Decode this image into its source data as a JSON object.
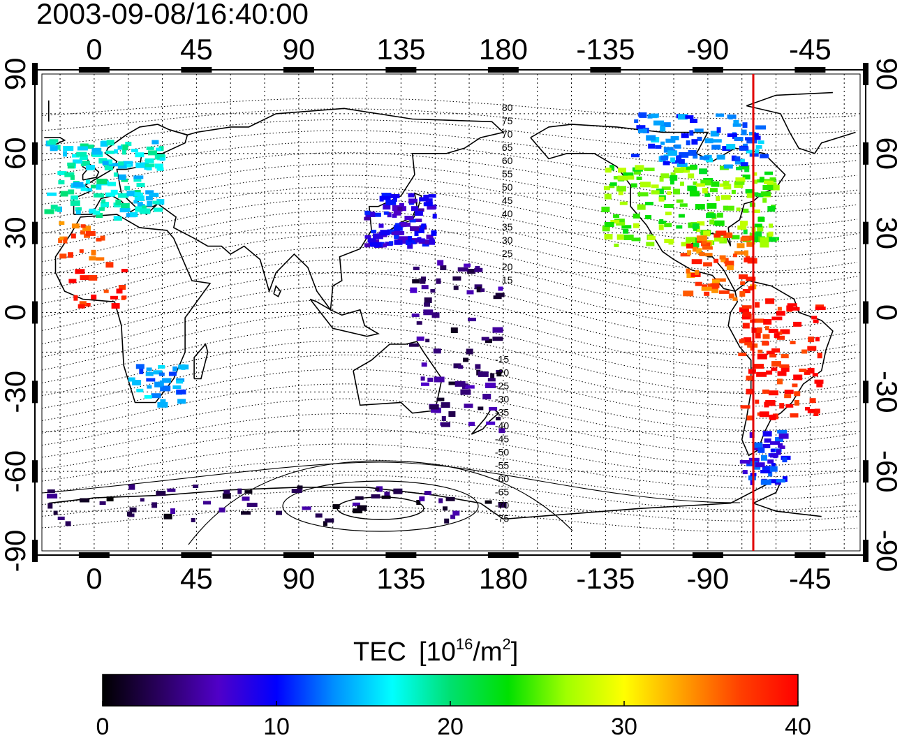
{
  "timestamp": "2003-09-08/16:40:00",
  "axes": {
    "top_lon_ticks": [
      "0",
      "45",
      "90",
      "135",
      "180",
      "-135",
      "-90",
      "-45"
    ],
    "bottom_lon_ticks": [
      "0",
      "45",
      "90",
      "135",
      "180",
      "-135",
      "-90",
      "-45"
    ],
    "left_lat_ticks": [
      "90",
      "60",
      "30",
      "0",
      "-30",
      "-60",
      "-90"
    ],
    "right_lat_ticks": [
      "90",
      "60",
      "30",
      "0",
      "-30",
      "-60",
      "-90"
    ]
  },
  "contour_labels_north": [
    "80",
    "75",
    "70",
    "65",
    "60",
    "55",
    "50",
    "45",
    "40",
    "35",
    "30",
    "25",
    "20",
    "15"
  ],
  "contour_labels_south": [
    "-15",
    "-20",
    "-25",
    "-30",
    "-35",
    "-40",
    "-45",
    "-50",
    "-55",
    "-60",
    "-65",
    "-70",
    "-75"
  ],
  "marker_longitude": -70,
  "colorbar": {
    "title": "TEC",
    "unit_prefix": "[10",
    "unit_exp": "16",
    "unit_mid": "/m",
    "unit_exp2": "2",
    "unit_suffix": "]",
    "ticks": [
      "0",
      "10",
      "20",
      "30",
      "40"
    ],
    "min": 0,
    "max": 40,
    "colors": [
      "#000000",
      "#2a0060",
      "#5000c8",
      "#0000ff",
      "#0090ff",
      "#00ffff",
      "#00e070",
      "#00e000",
      "#a0ff00",
      "#ffff00",
      "#ffa000",
      "#ff4000",
      "#ff0000"
    ]
  },
  "chart_data": {
    "type": "heatmap",
    "title": "2003-09-08/16:40:00",
    "xlabel": "",
    "ylabel": "",
    "colorbar_label": "TEC [10^16/m^2]",
    "value_range": [
      0,
      40
    ],
    "regions": [
      {
        "lon_range": [
          -20,
          30
        ],
        "lat_range": [
          35,
          65
        ],
        "tec": 17
      },
      {
        "lon_range": [
          -15,
          5
        ],
        "lat_range": [
          20,
          35
        ],
        "tec": 36
      },
      {
        "lon_range": [
          -10,
          15
        ],
        "lat_range": [
          0,
          20
        ],
        "tec": 39
      },
      {
        "lon_range": [
          15,
          40
        ],
        "lat_range": [
          -35,
          -20
        ],
        "tec": 14
      },
      {
        "lon_range": [
          120,
          150
        ],
        "lat_range": [
          25,
          45
        ],
        "tec": 8
      },
      {
        "lon_range": [
          140,
          180
        ],
        "lat_range": [
          -45,
          20
        ],
        "tec": 4
      },
      {
        "lon_range": [
          -135,
          -60
        ],
        "lat_range": [
          25,
          55
        ],
        "tec": 25
      },
      {
        "lon_range": [
          -125,
          -65
        ],
        "lat_range": [
          55,
          75
        ],
        "tec": 13
      },
      {
        "lon_range": [
          -100,
          -70
        ],
        "lat_range": [
          5,
          30
        ],
        "tec": 36
      },
      {
        "lon_range": [
          -75,
          -40
        ],
        "lat_range": [
          -40,
          5
        ],
        "tec": 39
      },
      {
        "lon_range": [
          -75,
          -55
        ],
        "lat_range": [
          -65,
          -45
        ],
        "tec": 10
      },
      {
        "lon_range": [
          -20,
          180
        ],
        "lat_range": [
          -80,
          -65
        ],
        "tec": 3
      }
    ]
  }
}
